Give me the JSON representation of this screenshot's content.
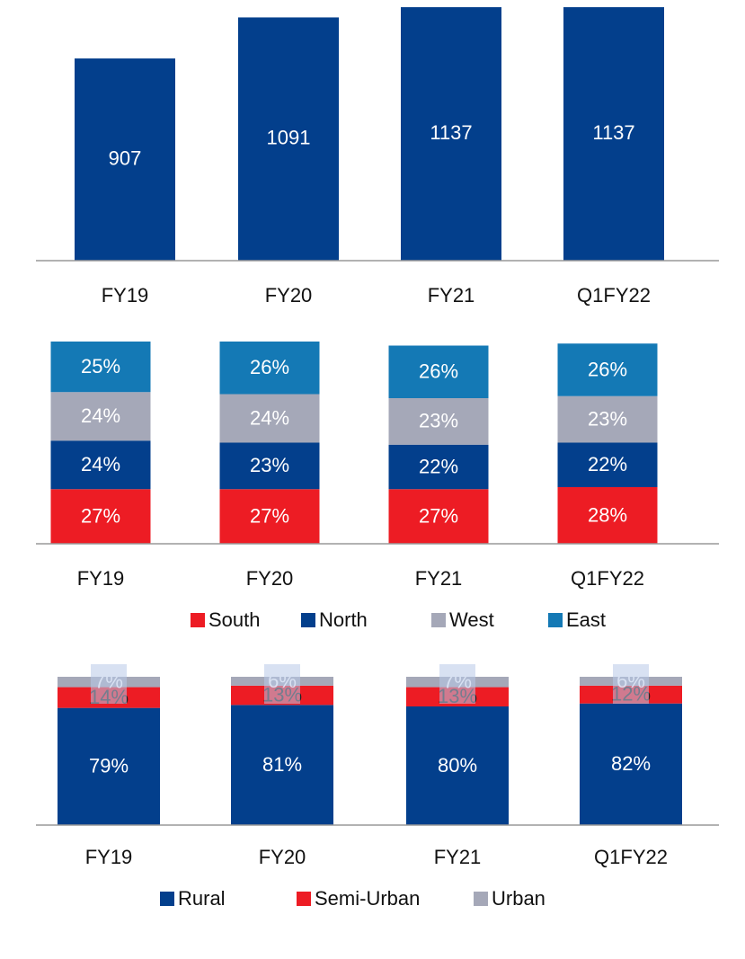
{
  "chart_data": [
    {
      "type": "bar",
      "categories": [
        "FY19",
        "FY20",
        "FY21",
        "Q1FY22"
      ],
      "values": [
        907,
        1091,
        1137,
        1137
      ],
      "color": "#033f8c"
    },
    {
      "type": "stacked_bar",
      "categories": [
        "FY19",
        "FY20",
        "FY21",
        "Q1FY22"
      ],
      "series": [
        {
          "name": "South",
          "color": "#ed1c24",
          "values": [
            27,
            27,
            27,
            28
          ],
          "value_labels": [
            "27%",
            "27%",
            "27%",
            "28%"
          ]
        },
        {
          "name": "North",
          "color": "#033f8c",
          "values": [
            24,
            23,
            22,
            22
          ],
          "value_labels": [
            "24%",
            "23%",
            "22%",
            "22%"
          ]
        },
        {
          "name": "West",
          "color": "#a5a8b8",
          "values": [
            24,
            24,
            23,
            23
          ],
          "value_labels": [
            "24%",
            "24%",
            "23%",
            "23%"
          ]
        },
        {
          "name": "East",
          "color": "#1479b5",
          "values": [
            25,
            26,
            26,
            26
          ],
          "value_labels": [
            "25%",
            "26%",
            "26%",
            "26%"
          ]
        }
      ]
    },
    {
      "type": "stacked_bar",
      "categories": [
        "FY19",
        "FY20",
        "FY21",
        "Q1FY22"
      ],
      "series": [
        {
          "name": "Rural",
          "color": "#033f8c",
          "values": [
            79,
            81,
            80,
            82
          ],
          "value_labels": [
            "79%",
            "81%",
            "80%",
            "82%"
          ]
        },
        {
          "name": "Semi-Urban",
          "color": "#ed1c24",
          "values": [
            14,
            13,
            13,
            12
          ],
          "value_labels": [
            "14%",
            "13%",
            "13%",
            "12%"
          ]
        },
        {
          "name": "Urban",
          "color": "#a5a8b8",
          "values": [
            7,
            6,
            7,
            6
          ],
          "value_labels": [
            "7%",
            "6%",
            "7%",
            "6%"
          ]
        }
      ]
    }
  ]
}
